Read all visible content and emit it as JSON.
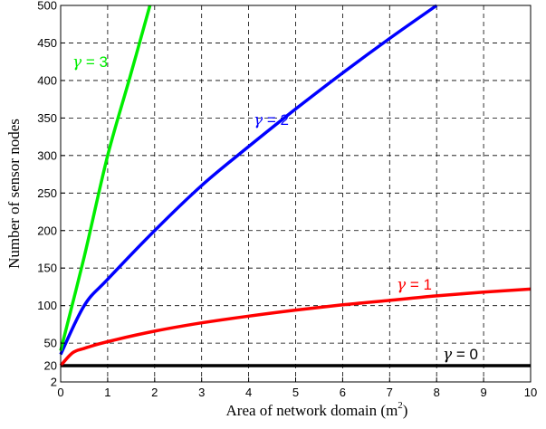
{
  "chart_data": {
    "type": "line",
    "title": "",
    "xlabel": "Area of network domain (m",
    "xlabel_superscript": "2",
    "xlabel_suffix": ")",
    "ylabel": "Number of sensor nodes",
    "xlim": [
      0,
      10
    ],
    "ylim": [
      2,
      500
    ],
    "grid": true,
    "grid_style": "dashed",
    "legend": "none",
    "x_ticks": [
      "0",
      "1",
      "2",
      "3",
      "4",
      "5",
      "6",
      "7",
      "8",
      "9",
      "10"
    ],
    "x_tick_values": [
      0,
      1,
      2,
      3,
      4,
      5,
      6,
      7,
      8,
      9,
      10
    ],
    "y_ticks": [
      "2",
      "20",
      "50",
      "100",
      "150",
      "200",
      "250",
      "300",
      "350",
      "400",
      "450",
      "500"
    ],
    "y_tick_values": [
      2,
      20,
      50,
      100,
      150,
      200,
      250,
      300,
      350,
      400,
      450,
      500
    ],
    "series": [
      {
        "symbol": "γ",
        "label_rest": " = 0",
        "color": "#000000",
        "x": [
          0,
          10
        ],
        "y": [
          20,
          20
        ]
      },
      {
        "symbol": "γ",
        "label_rest": " = 1",
        "color": "#ff0000",
        "x": [
          0,
          0.25,
          0.5,
          1,
          2,
          3,
          4,
          5,
          6,
          7,
          8,
          9,
          10
        ],
        "y": [
          20,
          37,
          43,
          52,
          66,
          77,
          86,
          94,
          101,
          107,
          113,
          118,
          122
        ]
      },
      {
        "symbol": "γ",
        "label_rest": " = 2",
        "color": "#0000ff",
        "x": [
          0,
          0.5,
          1,
          2,
          3,
          4,
          5,
          6,
          7,
          8
        ],
        "y": [
          35,
          100,
          135,
          200,
          260,
          312,
          362,
          410,
          456,
          500
        ]
      },
      {
        "symbol": "γ",
        "label_rest": " = 3",
        "color": "#00ee00",
        "x": [
          0,
          0.5,
          1,
          1.5,
          1.9
        ],
        "y": [
          40,
          165,
          300,
          410,
          500
        ]
      }
    ]
  }
}
